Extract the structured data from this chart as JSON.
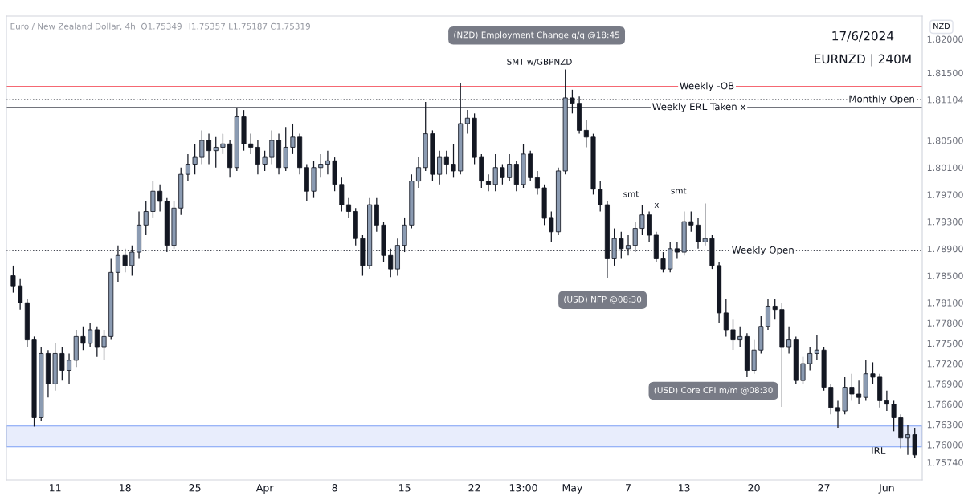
{
  "chart_data": {
    "type": "candlestick",
    "title": "Euro / New Zealand Dollar, 4h",
    "subtitle": "O1.75349 H1.75357 L1.75187 C1.75319",
    "ylabel": "NZD",
    "annotations": [
      "17/6/2024",
      "EURNZD | 240M",
      "(NZD) Employment Change q/q @18:45",
      "SMT w/GBPNZD",
      "(USD) NFP @08:30",
      "(USD) Core CPI m/m @08:30",
      "smt",
      "smt",
      "x"
    ],
    "categories": [
      null,
      null,
      null,
      null,
      null,
      null,
      "11",
      null,
      null,
      null,
      null,
      null,
      null,
      null,
      null,
      null,
      "18",
      null,
      null,
      null,
      null,
      null,
      null,
      null,
      null,
      null,
      "25",
      null,
      null,
      null,
      null,
      null,
      null,
      null,
      null,
      null,
      "Apr",
      null,
      null,
      null,
      null,
      null,
      null,
      null,
      null,
      null,
      "8",
      null,
      null,
      null,
      null,
      null,
      null,
      null,
      null,
      null,
      "15",
      null,
      null,
      null,
      null,
      null,
      null,
      null,
      null,
      null,
      "22",
      null,
      null,
      null,
      null,
      null,
      null,
      "13:00",
      null,
      null,
      null,
      null,
      null,
      null,
      "May",
      null,
      null,
      null,
      null,
      null,
      null,
      null,
      "7",
      null,
      null,
      null,
      null,
      null,
      null,
      null,
      "13",
      null,
      null,
      null,
      null,
      null,
      null,
      null,
      null,
      null,
      "20",
      null,
      null,
      null,
      null,
      null,
      null,
      null,
      null,
      null,
      "27",
      null,
      null,
      null,
      null,
      null,
      null,
      null,
      null,
      "Jun",
      null,
      null,
      null,
      null
    ],
    "ohlc": [
      [
        1.785,
        1.7865,
        1.7825,
        1.7835
      ],
      [
        1.7835,
        1.7845,
        1.78,
        1.781
      ],
      [
        1.781,
        1.7815,
        1.7745,
        1.7755
      ],
      [
        1.7755,
        1.776,
        1.7627,
        1.764
      ],
      [
        1.764,
        1.7745,
        1.7635,
        1.7735
      ],
      [
        1.7735,
        1.774,
        1.767,
        1.769
      ],
      [
        1.769,
        1.775,
        1.768,
        1.7735
      ],
      [
        1.7735,
        1.7745,
        1.7695,
        1.771
      ],
      [
        1.771,
        1.7735,
        1.769,
        1.7725
      ],
      [
        1.7725,
        1.777,
        1.7715,
        1.776
      ],
      [
        1.776,
        1.7775,
        1.774,
        1.775
      ],
      [
        1.775,
        1.778,
        1.7745,
        1.777
      ],
      [
        1.777,
        1.7775,
        1.773,
        1.7745
      ],
      [
        1.7745,
        1.777,
        1.7725,
        1.776
      ],
      [
        1.776,
        1.7875,
        1.7755,
        1.7855
      ],
      [
        1.7855,
        1.7895,
        1.784,
        1.788
      ],
      [
        1.788,
        1.789,
        1.7855,
        1.7865
      ],
      [
        1.7865,
        1.7895,
        1.785,
        1.7885
      ],
      [
        1.7885,
        1.7945,
        1.7875,
        1.7925
      ],
      [
        1.7925,
        1.796,
        1.791,
        1.7945
      ],
      [
        1.7945,
        1.799,
        1.7935,
        1.7975
      ],
      [
        1.7975,
        1.7985,
        1.7945,
        1.796
      ],
      [
        1.796,
        1.7965,
        1.7885,
        1.7895
      ],
      [
        1.7895,
        1.796,
        1.789,
        1.795
      ],
      [
        1.795,
        1.801,
        1.794,
        1.8
      ],
      [
        1.8,
        1.803,
        1.799,
        1.8015
      ],
      [
        1.8015,
        1.8045,
        1.8,
        1.8025
      ],
      [
        1.8025,
        1.8065,
        1.8015,
        1.805
      ],
      [
        1.805,
        1.806,
        1.8015,
        1.8035
      ],
      [
        1.8035,
        1.8055,
        1.801,
        1.804
      ],
      [
        1.804,
        1.806,
        1.803,
        1.8045
      ],
      [
        1.8045,
        1.805,
        1.7995,
        1.801
      ],
      [
        1.801,
        1.8098,
        1.8005,
        1.8085
      ],
      [
        1.8085,
        1.8095,
        1.8035,
        1.8045
      ],
      [
        1.8045,
        1.806,
        1.803,
        1.804
      ],
      [
        1.804,
        1.805,
        1.8,
        1.8015
      ],
      [
        1.8015,
        1.8035,
        1.8005,
        1.8025
      ],
      [
        1.8025,
        1.8065,
        1.8015,
        1.805
      ],
      [
        1.805,
        1.806,
        1.8,
        1.801
      ],
      [
        1.801,
        1.807,
        1.8005,
        1.804
      ],
      [
        1.804,
        1.8075,
        1.803,
        1.8055
      ],
      [
        1.8055,
        1.806,
        1.8,
        1.801
      ],
      [
        1.801,
        1.8015,
        1.796,
        1.7975
      ],
      [
        1.7975,
        1.802,
        1.7965,
        1.801
      ],
      [
        1.801,
        1.803,
        1.7995,
        1.8015
      ],
      [
        1.8015,
        1.8035,
        1.8,
        1.802
      ],
      [
        1.802,
        1.8025,
        1.7975,
        1.7985
      ],
      [
        1.7985,
        1.7995,
        1.7945,
        1.7955
      ],
      [
        1.7955,
        1.7965,
        1.7935,
        1.7945
      ],
      [
        1.7945,
        1.795,
        1.7895,
        1.7905
      ],
      [
        1.7905,
        1.791,
        1.785,
        1.7865
      ],
      [
        1.7865,
        1.7965,
        1.786,
        1.7955
      ],
      [
        1.7955,
        1.7965,
        1.7915,
        1.7925
      ],
      [
        1.7925,
        1.793,
        1.787,
        1.788
      ],
      [
        1.788,
        1.789,
        1.7848,
        1.786
      ],
      [
        1.786,
        1.7905,
        1.785,
        1.7895
      ],
      [
        1.7895,
        1.7935,
        1.7885,
        1.7925
      ],
      [
        1.7925,
        1.8,
        1.792,
        1.799
      ],
      [
        1.799,
        1.8025,
        1.798,
        1.801
      ],
      [
        1.801,
        1.8107,
        1.8005,
        1.806
      ],
      [
        1.806,
        1.8065,
        1.799,
        1.8
      ],
      [
        1.8,
        1.8035,
        1.7985,
        1.8025
      ],
      [
        1.8025,
        1.8035,
        1.8,
        1.8015
      ],
      [
        1.8015,
        1.8045,
        1.7995,
        1.8005
      ],
      [
        1.8005,
        1.8135,
        1.8,
        1.8075
      ],
      [
        1.8075,
        1.8095,
        1.806,
        1.8083
      ],
      [
        1.8083,
        1.809,
        1.8015,
        1.8025
      ],
      [
        1.8025,
        1.803,
        1.798,
        1.799
      ],
      [
        1.799,
        1.8,
        1.7975,
        1.7985
      ],
      [
        1.7985,
        1.803,
        1.7975,
        1.801
      ],
      [
        1.801,
        1.8015,
        1.7985,
        1.7995
      ],
      [
        1.7995,
        1.803,
        1.799,
        1.8015
      ],
      [
        1.8015,
        1.802,
        1.7975,
        1.7985
      ],
      [
        1.7985,
        1.8045,
        1.798,
        1.803
      ],
      [
        1.803,
        1.8035,
        1.799,
        1.7995
      ],
      [
        1.7995,
        1.8005,
        1.797,
        1.798
      ],
      [
        1.798,
        1.7985,
        1.7925,
        1.7935
      ],
      [
        1.7935,
        1.7945,
        1.79,
        1.7915
      ],
      [
        1.7915,
        1.801,
        1.791,
        1.8005
      ],
      [
        1.8005,
        1.8155,
        1.8,
        1.8113
      ],
      [
        1.8113,
        1.8125,
        1.809,
        1.8105
      ],
      [
        1.8105,
        1.8115,
        1.806,
        1.8065
      ],
      [
        1.8065,
        1.808,
        1.804,
        1.8055
      ],
      [
        1.8055,
        1.806,
        1.797,
        1.7978
      ],
      [
        1.7978,
        1.799,
        1.7945,
        1.7955
      ],
      [
        1.7955,
        1.796,
        1.7847,
        1.7875
      ],
      [
        1.7875,
        1.792,
        1.7865,
        1.7905
      ],
      [
        1.7905,
        1.7915,
        1.7875,
        1.789
      ],
      [
        1.789,
        1.791,
        1.788,
        1.7895
      ],
      [
        1.7895,
        1.793,
        1.7885,
        1.792
      ],
      [
        1.792,
        1.7955,
        1.791,
        1.794
      ],
      [
        1.794,
        1.7945,
        1.79,
        1.791
      ],
      [
        1.791,
        1.7915,
        1.787,
        1.7875
      ],
      [
        1.7875,
        1.7885,
        1.7855,
        1.786
      ],
      [
        1.786,
        1.79,
        1.7855,
        1.789
      ],
      [
        1.789,
        1.79,
        1.7875,
        1.7885
      ],
      [
        1.7885,
        1.7945,
        1.788,
        1.793
      ],
      [
        1.793,
        1.7945,
        1.7915,
        1.7925
      ],
      [
        1.7925,
        1.7935,
        1.789,
        1.79
      ],
      [
        1.79,
        1.7957,
        1.7895,
        1.7905
      ],
      [
        1.7905,
        1.791,
        1.786,
        1.7865
      ],
      [
        1.7865,
        1.787,
        1.778,
        1.7795
      ],
      [
        1.7795,
        1.7815,
        1.776,
        1.777
      ],
      [
        1.777,
        1.7785,
        1.774,
        1.7755
      ],
      [
        1.7755,
        1.7775,
        1.7745,
        1.776
      ],
      [
        1.776,
        1.7765,
        1.77,
        1.771
      ],
      [
        1.771,
        1.7755,
        1.7705,
        1.774
      ],
      [
        1.774,
        1.779,
        1.7735,
        1.7775
      ],
      [
        1.7775,
        1.7815,
        1.777,
        1.7805
      ],
      [
        1.7805,
        1.7815,
        1.7785,
        1.78
      ],
      [
        1.78,
        1.781,
        1.7656,
        1.7745
      ],
      [
        1.7745,
        1.7775,
        1.7735,
        1.7755
      ],
      [
        1.7755,
        1.776,
        1.769,
        1.7695
      ],
      [
        1.7695,
        1.773,
        1.769,
        1.772
      ],
      [
        1.772,
        1.7745,
        1.771,
        1.7735
      ],
      [
        1.7735,
        1.7762,
        1.7725,
        1.774
      ],
      [
        1.774,
        1.7745,
        1.768,
        1.7685
      ],
      [
        1.7685,
        1.769,
        1.7645,
        1.7655
      ],
      [
        1.7655,
        1.7665,
        1.7625,
        1.765
      ],
      [
        1.765,
        1.77,
        1.7645,
        1.7685
      ],
      [
        1.7685,
        1.7705,
        1.7665,
        1.7675
      ],
      [
        1.7675,
        1.7695,
        1.766,
        1.767
      ],
      [
        1.767,
        1.7725,
        1.7665,
        1.7705
      ],
      [
        1.7705,
        1.7722,
        1.769,
        1.77
      ],
      [
        1.77,
        1.7705,
        1.7655,
        1.7665
      ],
      [
        1.7665,
        1.768,
        1.765,
        1.766
      ],
      [
        1.766,
        1.7665,
        1.762,
        1.764
      ],
      [
        1.764,
        1.7645,
        1.7595,
        1.761
      ],
      [
        1.761,
        1.763,
        1.7585,
        1.7615
      ],
      [
        1.7615,
        1.7625,
        1.758,
        1.7585
      ]
    ],
    "ylim": [
      1.7548,
      1.8234
    ],
    "yticks": [
      {
        "value": 1.7574,
        "label": "1.75740"
      },
      {
        "value": 1.76,
        "label": "1.76000"
      },
      {
        "value": 1.763,
        "label": "1.76300"
      },
      {
        "value": 1.766,
        "label": "1.76600"
      },
      {
        "value": 1.769,
        "label": "1.76900"
      },
      {
        "value": 1.772,
        "label": "1.77200"
      },
      {
        "value": 1.775,
        "label": "1.77500"
      },
      {
        "value": 1.778,
        "label": "1.77800"
      },
      {
        "value": 1.781,
        "label": "1.78100"
      },
      {
        "value": 1.785,
        "label": "1.78500"
      },
      {
        "value": 1.789,
        "label": "1.78900"
      },
      {
        "value": 1.793,
        "label": "1.79300"
      },
      {
        "value": 1.797,
        "label": "1.79700"
      },
      {
        "value": 1.801,
        "label": "1.80100"
      },
      {
        "value": 1.805,
        "label": "1.80500"
      },
      {
        "value": 1.81104,
        "label": "1.81104"
      },
      {
        "value": 1.815,
        "label": "1.81500"
      },
      {
        "value": 1.82,
        "label": "1.82000"
      }
    ],
    "ref_lines": [
      {
        "axis": "y",
        "value": 1.81297,
        "label": "Weekly -OB",
        "color": "#f23645"
      },
      {
        "axis": "y",
        "value": 1.80989,
        "label": "Weekly ERL Taken x",
        "color": "#434651"
      },
      {
        "axis": "y",
        "value": 1.81104,
        "label": "Monthly Open",
        "color": "#131722",
        "line_style": "dotted"
      },
      {
        "axis": "y",
        "value": 1.7887,
        "label": "Weekly Open",
        "color": "#434651",
        "line_style": "dotted"
      }
    ],
    "bands": [
      {
        "axis": "y",
        "from": 1.75969,
        "to": 1.76278,
        "label": "IRL",
        "color": "#e8edfc"
      }
    ]
  }
}
